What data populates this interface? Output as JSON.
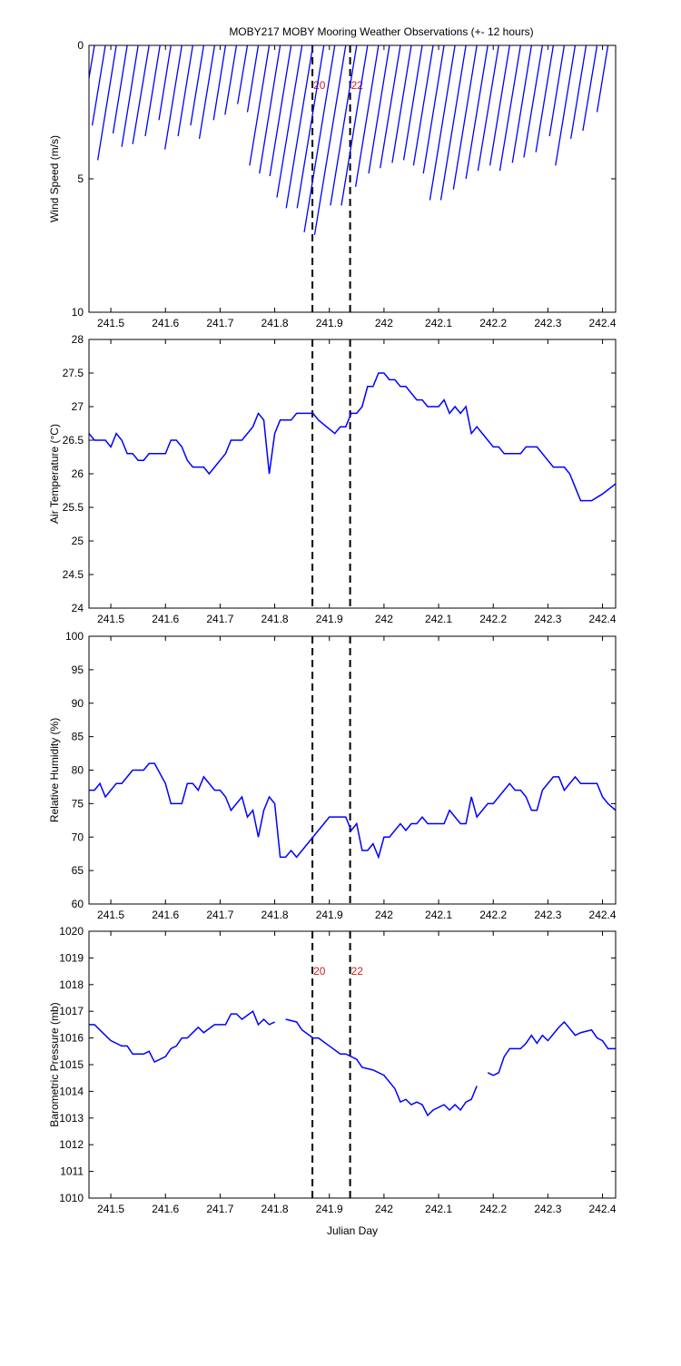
{
  "chart_data": [
    {
      "type": "stick",
      "title": "MOBY217 MOBY Mooring Weather Observations (+- 12 hours)",
      "ylabel": "Wind Speed (m/s)",
      "xlim": [
        241.46,
        242.424
      ],
      "xticks": [
        241.5,
        241.6,
        241.7,
        241.8,
        241.9,
        242,
        242.1,
        242.2,
        242.3,
        242.4
      ],
      "ylim": [
        0,
        10
      ],
      "yticks": [
        0,
        5,
        10
      ],
      "y_reversed": true,
      "color": "#0000ff",
      "vlines": [
        {
          "value": 241.869,
          "label": "20"
        },
        {
          "value": 241.938,
          "label": "22"
        }
      ],
      "vline_label_color": "#cc2222",
      "x": [
        241.47,
        241.49,
        241.51,
        241.53,
        241.55,
        241.57,
        241.59,
        241.61,
        241.63,
        241.65,
        241.67,
        241.69,
        241.71,
        241.73,
        241.75,
        241.77,
        241.79,
        241.81,
        241.83,
        241.85,
        241.87,
        241.89,
        241.91,
        241.93,
        241.95,
        241.97,
        241.99,
        242.01,
        242.03,
        242.05,
        242.07,
        242.09,
        242.11,
        242.13,
        242.15,
        242.17,
        242.19,
        242.21,
        242.23,
        242.25,
        242.27,
        242.29,
        242.31,
        242.33,
        242.35,
        242.37,
        242.39,
        242.41
      ],
      "x_end": [
        241.452,
        241.466,
        241.476,
        241.504,
        241.52,
        241.54,
        241.563,
        241.588,
        241.599,
        241.623,
        241.646,
        241.662,
        241.688,
        241.709,
        241.732,
        241.75,
        241.754,
        241.772,
        241.791,
        241.804,
        241.821,
        241.841,
        241.854,
        241.873,
        241.902,
        241.922,
        241.948,
        241.972,
        241.993,
        242.015,
        242.036,
        242.054,
        242.072,
        242.084,
        242.104,
        242.127,
        242.15,
        242.172,
        242.194,
        242.212,
        242.235,
        242.256,
        242.278,
        242.303,
        242.314,
        242.342,
        242.364,
        242.39
      ],
      "values": [
        2.2,
        3.0,
        4.3,
        3.3,
        3.8,
        3.7,
        3.4,
        2.8,
        3.9,
        3.4,
        3.0,
        3.5,
        2.8,
        2.6,
        2.2,
        2.5,
        4.5,
        4.8,
        4.9,
        5.7,
        6.1,
        6.1,
        7.0,
        7.1,
        6.0,
        6.0,
        5.3,
        4.8,
        4.6,
        4.4,
        4.3,
        4.5,
        4.8,
        5.8,
        5.8,
        5.4,
        5.0,
        4.7,
        4.5,
        4.7,
        4.4,
        4.2,
        4.0,
        3.4,
        4.5,
        3.5,
        3.2,
        2.5
      ]
    },
    {
      "type": "line",
      "ylabel": "Air Temperature (°C)",
      "xlim": [
        241.46,
        242.424
      ],
      "xticks": [
        241.5,
        241.6,
        241.7,
        241.8,
        241.9,
        242,
        242.1,
        242.2,
        242.3,
        242.4
      ],
      "ylim": [
        24,
        28
      ],
      "yticks": [
        24,
        24.5,
        25,
        25.5,
        26,
        26.5,
        27,
        27.5,
        28
      ],
      "color": "#0000ff",
      "vlines": [
        241.869,
        241.938
      ],
      "x": [
        241.46,
        241.47,
        241.49,
        241.5,
        241.51,
        241.52,
        241.53,
        241.54,
        241.55,
        241.56,
        241.57,
        241.6,
        241.61,
        241.62,
        241.63,
        241.64,
        241.65,
        241.67,
        241.68,
        241.7,
        241.71,
        241.72,
        241.74,
        241.76,
        241.77,
        241.78,
        241.79,
        241.8,
        241.81,
        241.83,
        241.84,
        241.87,
        241.88,
        241.91,
        241.92,
        241.93,
        241.94,
        241.95,
        241.96,
        241.97,
        241.98,
        241.99,
        242.0,
        242.01,
        242.02,
        242.03,
        242.04,
        242.06,
        242.07,
        242.08,
        242.1,
        242.11,
        242.12,
        242.13,
        242.14,
        242.15,
        242.16,
        242.17,
        242.19,
        242.2,
        242.21,
        242.22,
        242.25,
        242.26,
        242.28,
        242.3,
        242.31,
        242.33,
        242.34,
        242.35,
        242.36,
        242.38,
        242.4,
        242.424
      ],
      "values": [
        26.6,
        26.5,
        26.5,
        26.4,
        26.6,
        26.5,
        26.3,
        26.3,
        26.2,
        26.2,
        26.3,
        26.3,
        26.5,
        26.5,
        26.4,
        26.2,
        26.1,
        26.1,
        26.0,
        26.2,
        26.3,
        26.5,
        26.5,
        26.7,
        26.9,
        26.8,
        26.0,
        26.6,
        26.8,
        26.8,
        26.9,
        26.9,
        26.8,
        26.6,
        26.7,
        26.7,
        26.9,
        26.9,
        27.0,
        27.3,
        27.3,
        27.5,
        27.5,
        27.4,
        27.4,
        27.3,
        27.3,
        27.1,
        27.1,
        27.0,
        27.0,
        27.1,
        26.9,
        27.0,
        26.9,
        27.0,
        26.6,
        26.7,
        26.5,
        26.4,
        26.4,
        26.3,
        26.3,
        26.4,
        26.4,
        26.2,
        26.1,
        26.1,
        26.0,
        25.8,
        25.6,
        25.6,
        25.7,
        25.85
      ]
    },
    {
      "type": "line",
      "ylabel": "Relative Humidity (%)",
      "xlim": [
        241.46,
        242.424
      ],
      "xticks": [
        241.5,
        241.6,
        241.7,
        241.8,
        241.9,
        242,
        242.1,
        242.2,
        242.3,
        242.4
      ],
      "ylim": [
        60,
        100
      ],
      "yticks": [
        60,
        65,
        70,
        75,
        80,
        85,
        90,
        95,
        100
      ],
      "color": "#0000ff",
      "vlines": [
        241.869,
        241.938
      ],
      "x": [
        241.46,
        241.47,
        241.48,
        241.49,
        241.51,
        241.52,
        241.54,
        241.56,
        241.57,
        241.58,
        241.6,
        241.61,
        241.63,
        241.64,
        241.65,
        241.66,
        241.67,
        241.69,
        241.7,
        241.71,
        241.72,
        241.74,
        241.75,
        241.76,
        241.77,
        241.78,
        241.79,
        241.8,
        241.81,
        241.82,
        241.83,
        241.84,
        241.9,
        241.93,
        241.94,
        241.95,
        241.96,
        241.97,
        241.98,
        241.99,
        242.0,
        242.01,
        242.03,
        242.04,
        242.05,
        242.06,
        242.07,
        242.08,
        242.11,
        242.12,
        242.14,
        242.15,
        242.16,
        242.17,
        242.19,
        242.2,
        242.22,
        242.23,
        242.24,
        242.25,
        242.26,
        242.27,
        242.28,
        242.29,
        242.31,
        242.32,
        242.33,
        242.35,
        242.36,
        242.39,
        242.4,
        242.41,
        242.424
      ],
      "values": [
        77,
        77,
        78,
        76,
        78,
        78,
        80,
        80,
        81,
        81,
        78,
        75,
        75,
        78,
        78,
        77,
        79,
        77,
        77,
        76,
        74,
        76,
        73,
        74,
        70,
        74,
        76,
        75,
        67,
        67,
        68,
        67,
        73,
        73,
        71,
        72,
        68,
        68,
        69,
        67,
        70,
        70,
        72,
        71,
        72,
        72,
        73,
        72,
        72,
        74,
        72,
        72,
        76,
        73,
        75,
        75,
        77,
        78,
        77,
        77,
        76,
        74,
        74,
        77,
        79,
        79,
        77,
        79,
        78,
        78,
        76,
        75,
        74
      ]
    },
    {
      "type": "line",
      "ylabel": "Barometric Pressure (mb)",
      "xlabel": "Julian Day",
      "xlim": [
        241.46,
        242.424
      ],
      "xticks": [
        241.5,
        241.6,
        241.7,
        241.8,
        241.9,
        242,
        242.1,
        242.2,
        242.3,
        242.4
      ],
      "ylim": [
        1010,
        1020
      ],
      "yticks": [
        1010,
        1011,
        1012,
        1013,
        1014,
        1015,
        1016,
        1017,
        1018,
        1019,
        1020
      ],
      "color": "#0000ff",
      "vlines": [
        {
          "value": 241.869,
          "label": "20"
        },
        {
          "value": 241.938,
          "label": "22"
        }
      ],
      "vline_label_color": "#cc2222",
      "x": [
        241.46,
        241.47,
        241.48,
        241.5,
        241.52,
        241.53,
        241.54,
        241.56,
        241.57,
        241.58,
        241.6,
        241.61,
        241.62,
        241.63,
        241.64,
        241.65,
        241.66,
        241.67,
        241.69,
        241.71,
        241.72,
        241.73,
        241.74,
        241.76,
        241.77,
        241.78,
        241.79,
        241.8,
        241.81,
        241.82,
        241.84,
        241.85,
        241.87,
        241.88,
        241.9,
        241.92,
        241.93,
        241.95,
        241.96,
        241.98,
        242.0,
        242.02,
        242.03,
        242.04,
        242.05,
        242.06,
        242.07,
        242.08,
        242.09,
        242.11,
        242.12,
        242.13,
        242.14,
        242.15,
        242.16,
        242.17,
        242.18,
        242.19,
        242.2,
        242.21,
        242.22,
        242.23,
        242.25,
        242.26,
        242.27,
        242.28,
        242.29,
        242.3,
        242.32,
        242.33,
        242.35,
        242.36,
        242.38,
        242.39,
        242.4,
        242.41,
        242.424
      ],
      "values": [
        1016.5,
        1016.5,
        1016.3,
        1015.9,
        1015.7,
        1015.7,
        1015.4,
        1015.4,
        1015.5,
        1015.1,
        1015.3,
        1015.6,
        1015.7,
        1016.0,
        1016.0,
        1016.2,
        1016.4,
        1016.2,
        1016.5,
        1016.5,
        1016.9,
        1016.9,
        1016.7,
        1017.0,
        1016.5,
        1016.7,
        1016.5,
        1016.6,
        null,
        1016.7,
        1016.6,
        1016.3,
        1016.0,
        1016.0,
        1015.7,
        1015.4,
        1015.4,
        1015.2,
        1014.9,
        1014.8,
        1014.6,
        1014.1,
        1013.6,
        1013.7,
        1013.5,
        1013.6,
        1013.5,
        1013.1,
        1013.3,
        1013.5,
        1013.3,
        1013.5,
        1013.3,
        1013.6,
        1013.7,
        1014.2,
        null,
        1014.7,
        1014.6,
        1014.7,
        1015.3,
        1015.6,
        1015.6,
        1015.8,
        1016.1,
        1015.8,
        1016.1,
        1015.9,
        1016.4,
        1016.6,
        1016.1,
        1016.2,
        1016.3,
        1016.0,
        1015.9,
        1015.6,
        1015.6
      ]
    }
  ]
}
